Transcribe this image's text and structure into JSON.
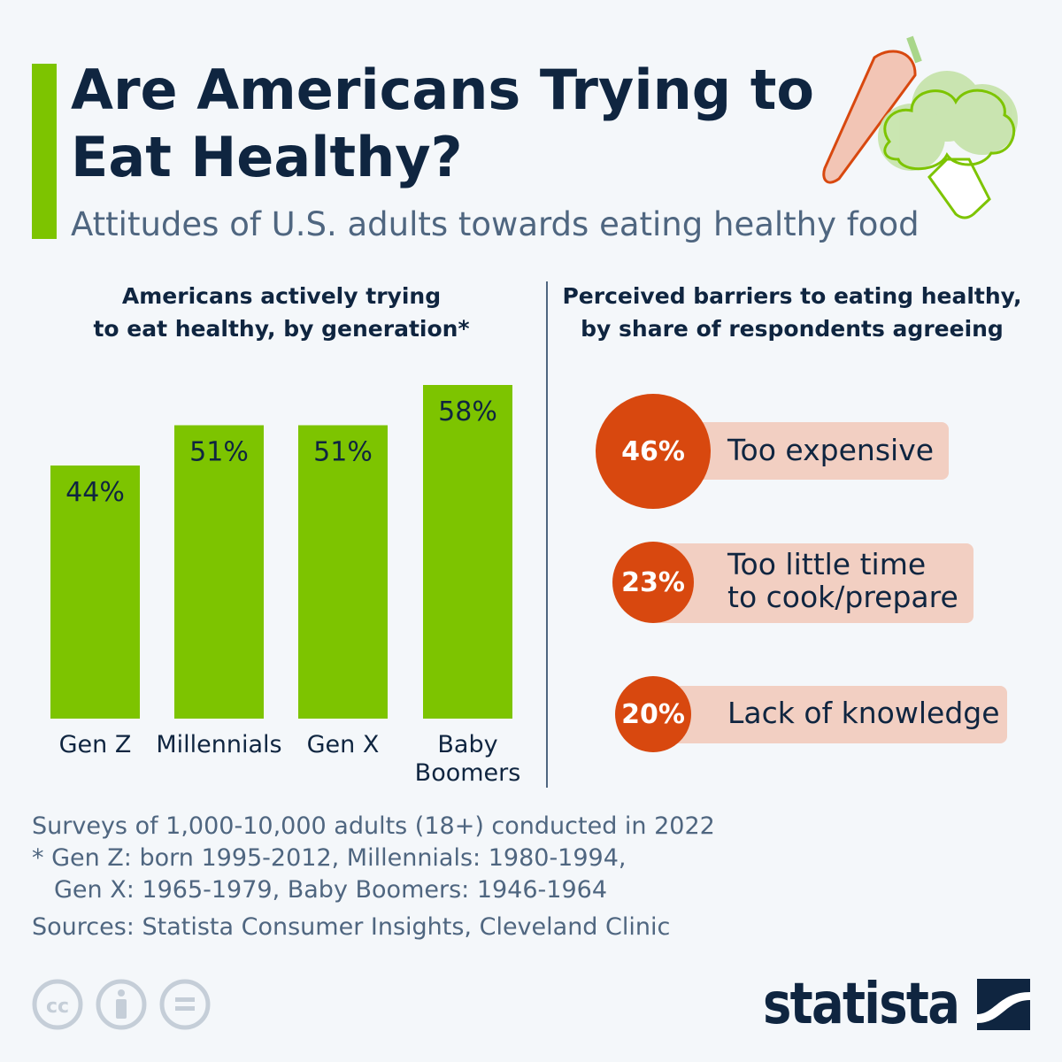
{
  "title": "Are Americans Trying to Eat Healthy?",
  "subtitle": "Attitudes of U.S. adults towards eating healthy food",
  "colors": {
    "accent": "#7dc400",
    "bar": "#7dc400",
    "circle": "#d8480f",
    "pill": "#f2cfc2",
    "text": "#0f2540"
  },
  "chart_data": [
    {
      "type": "bar",
      "title": "Americans actively trying to eat healthy, by generation*",
      "title_lines": [
        "Americans actively trying",
        "to eat healthy, by generation*"
      ],
      "categories": [
        "Gen Z",
        "Millennials",
        "Gen X",
        "Baby Boomers"
      ],
      "category_lines": [
        [
          "Gen Z"
        ],
        [
          "Millennials"
        ],
        [
          "Gen X"
        ],
        [
          "Baby",
          "Boomers"
        ]
      ],
      "values": [
        44,
        51,
        51,
        58
      ],
      "data_labels": [
        "44%",
        "51%",
        "51%",
        "58%"
      ],
      "unit": "%",
      "ylim": [
        0,
        58
      ],
      "grid": false
    },
    {
      "type": "table",
      "title": "Perceived barriers to eating healthy, by share of respondents agreeing",
      "title_lines": [
        "Perceived barriers to eating healthy,",
        "by share of respondents agreeing"
      ],
      "items": [
        {
          "value": 46,
          "label": "46%",
          "lines": [
            "Too expensive"
          ]
        },
        {
          "value": 23,
          "label": "23%",
          "lines": [
            "Too little time",
            "to cook/prepare"
          ]
        },
        {
          "value": 20,
          "label": "20%",
          "lines": [
            "Lack of knowledge"
          ]
        }
      ]
    }
  ],
  "footer": {
    "note": "Surveys of 1,000-10,000 adults (18+) conducted in 2022",
    "footnote_1": "* Gen Z: born 1995-2012, Millennials: 1980-1994,",
    "footnote_2": "Gen X: 1965-1979, Baby Boomers: 1946-1964",
    "sources": "Sources: Statista Consumer Insights, Cleveland Clinic"
  },
  "license_icons": [
    "cc-icon",
    "attribution-icon",
    "no-derivatives-icon"
  ],
  "logo": "statista"
}
